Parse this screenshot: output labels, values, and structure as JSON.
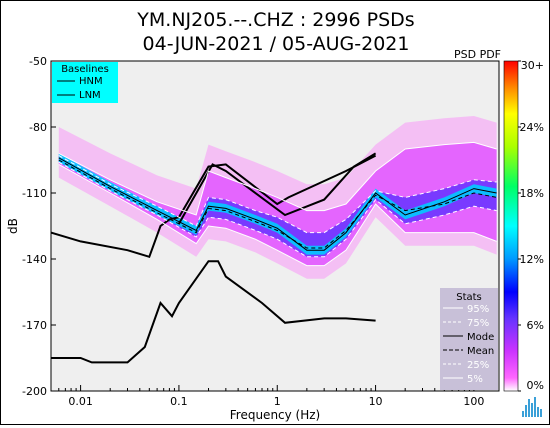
{
  "header": {
    "title_line1": "YM.NJ205.--.CHZ : 2996 PSDs",
    "title_line2": "04-JUN-2021 / 05-AUG-2021",
    "pdf_label": "PSD PDF"
  },
  "baselines": {
    "title": "Baselines",
    "items": [
      "HNM",
      "LNM"
    ]
  },
  "stats": {
    "title": "Stats",
    "items": [
      "95%",
      "75%",
      "Mode",
      "Mean",
      "25%",
      "5%"
    ]
  },
  "colorbar": {
    "ticks": [
      "30+",
      "24%",
      "18%",
      "12%",
      "6%",
      "0%"
    ],
    "values": [
      30,
      24,
      18,
      12,
      6,
      0
    ]
  },
  "colors": {
    "plot_background": "#efefef",
    "legend_baselines_bg": "#00ffff",
    "legend_stats_bg": "#c8c0d8"
  },
  "chart_data": {
    "type": "heatmap",
    "xlabel": "Frequency (Hz)",
    "ylabel": "dB",
    "xscale": "log",
    "xlim": [
      0.005,
      180
    ],
    "ylim": [
      -200,
      -50
    ],
    "xticks": [
      0.01,
      0.1,
      1,
      10,
      100
    ],
    "xtick_labels": [
      "0.01",
      "0.1",
      "1",
      "10",
      "100"
    ],
    "yticks": [
      -50,
      -80,
      -110,
      -140,
      -170,
      -200
    ],
    "ytick_labels": [
      "-50",
      "-80",
      "-110",
      "-140",
      "-170",
      "-200"
    ],
    "series": [
      {
        "name": "HNM",
        "style": "solid-black",
        "x": [
          0.1,
          0.22,
          0.3,
          1.2,
          3,
          6,
          10
        ],
        "y": [
          -124,
          -97,
          -100,
          -120,
          -113,
          -98,
          -92
        ]
      },
      {
        "name": "LNM",
        "style": "solid-black",
        "x": [
          0.005,
          0.01,
          0.03,
          0.05,
          0.065,
          0.08,
          0.1,
          0.2,
          0.3,
          1.0,
          1.3,
          5,
          10
        ],
        "y": [
          -128,
          -132,
          -136,
          -139,
          -125,
          -122,
          -121,
          -98,
          -97,
          -115,
          -112,
          -100,
          -93
        ]
      },
      {
        "name": "LNM",
        "style": "solid-black",
        "x": [
          0.005,
          0.01,
          0.013,
          0.03,
          0.045,
          0.065,
          0.085,
          0.1,
          0.2,
          0.25,
          0.3,
          0.7,
          1.2,
          3,
          5,
          10
        ],
        "y": [
          -185,
          -185,
          -187,
          -187,
          -180,
          -160,
          -166,
          -160,
          -141,
          -141,
          -148,
          -160,
          -169,
          -167,
          -167,
          -168
        ]
      },
      {
        "name": "Mode",
        "style": "solid-black",
        "x": [
          0.006,
          0.02,
          0.06,
          0.15,
          0.2,
          0.3,
          0.6,
          1.0,
          2.0,
          3.0,
          5.0,
          10,
          20,
          50,
          100,
          170
        ],
        "y": [
          -94,
          -107,
          -118,
          -127,
          -116,
          -117,
          -122,
          -126,
          -136,
          -136,
          -128,
          -110,
          -120,
          -114,
          -108,
          -110
        ]
      },
      {
        "name": "Mean",
        "style": "dashed-black",
        "x": [
          0.006,
          0.02,
          0.06,
          0.15,
          0.2,
          0.3,
          0.6,
          1.0,
          2.0,
          3.0,
          5.0,
          10,
          20,
          50,
          100,
          170
        ],
        "y": [
          -95,
          -108,
          -119,
          -128,
          -117,
          -118,
          -123,
          -127,
          -135,
          -135,
          -127,
          -111,
          -118,
          -115,
          -110,
          -112
        ]
      },
      {
        "name": "95%",
        "style": "solid-white",
        "x": [
          0.006,
          0.02,
          0.06,
          0.15,
          0.2,
          0.3,
          0.6,
          1.0,
          2.0,
          3.0,
          5.0,
          10,
          20,
          50,
          100,
          170
        ],
        "y": [
          -92,
          -104,
          -114,
          -120,
          -100,
          -103,
          -108,
          -112,
          -118,
          -118,
          -115,
          -100,
          -90,
          -88,
          -87,
          -90
        ]
      },
      {
        "name": "75%",
        "style": "dashed-white",
        "x": [
          0.006,
          0.02,
          0.06,
          0.15,
          0.2,
          0.3,
          0.6,
          1.0,
          2.0,
          3.0,
          5.0,
          10,
          20,
          50,
          100,
          170
        ],
        "y": [
          -93,
          -106,
          -116,
          -125,
          -112,
          -113,
          -118,
          -121,
          -128,
          -128,
          -122,
          -109,
          -112,
          -108,
          -104,
          -105
        ]
      },
      {
        "name": "25%",
        "style": "dashed-white",
        "x": [
          0.006,
          0.02,
          0.06,
          0.15,
          0.2,
          0.3,
          0.6,
          1.0,
          2.0,
          3.0,
          5.0,
          10,
          20,
          50,
          100,
          170
        ],
        "y": [
          -96,
          -109,
          -120,
          -130,
          -121,
          -122,
          -127,
          -131,
          -139,
          -139,
          -131,
          -113,
          -124,
          -120,
          -116,
          -118
        ]
      },
      {
        "name": "5%",
        "style": "solid-white",
        "x": [
          0.006,
          0.02,
          0.06,
          0.15,
          0.2,
          0.3,
          0.6,
          1.0,
          2.0,
          3.0,
          5.0,
          10,
          20,
          50,
          100,
          170
        ],
        "y": [
          -97,
          -110,
          -122,
          -133,
          -125,
          -126,
          -131,
          -136,
          -143,
          -143,
          -136,
          -115,
          -128,
          -128,
          -128,
          -132
        ]
      }
    ]
  }
}
